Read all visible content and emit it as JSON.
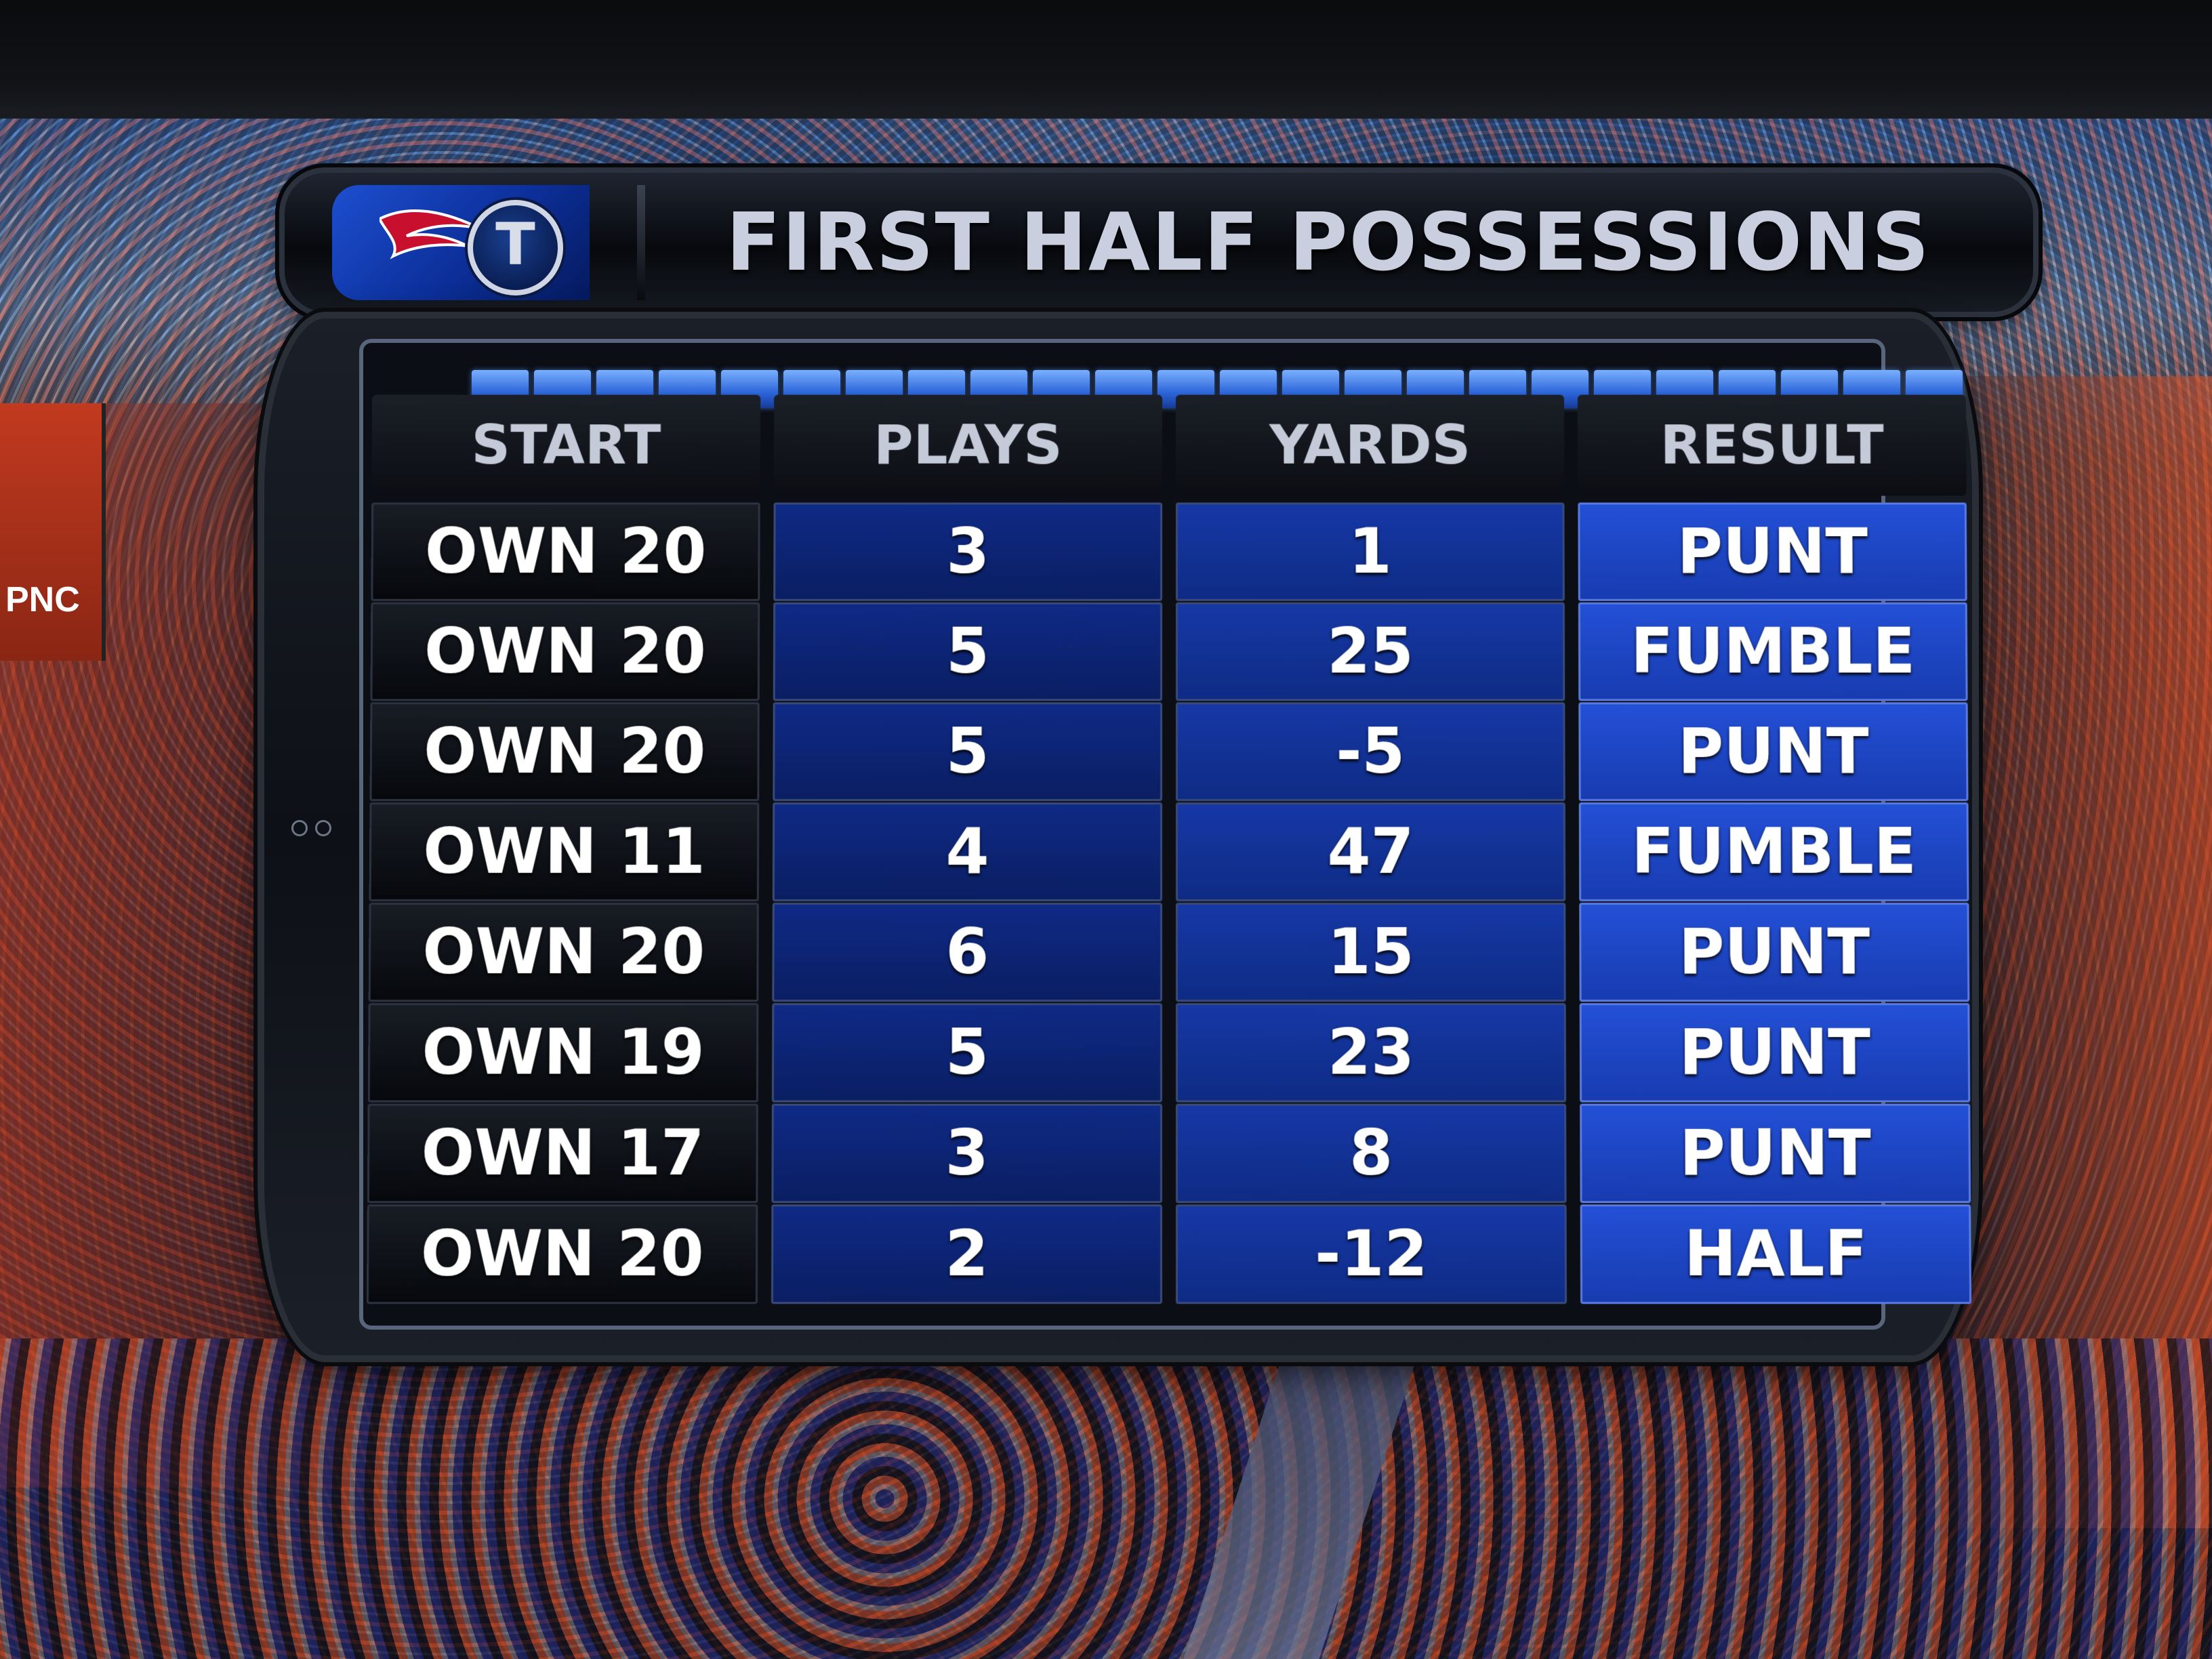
{
  "header": {
    "title": "FIRST HALF POSSESSIONS",
    "logo_letter": "T"
  },
  "ad_board": {
    "text": "PNC"
  },
  "table": {
    "columns": [
      "START",
      "PLAYS",
      "YARDS",
      "RESULT"
    ],
    "rows": [
      {
        "start": "OWN 20",
        "plays": "3",
        "yards": "1",
        "result": "PUNT"
      },
      {
        "start": "OWN 20",
        "plays": "5",
        "yards": "25",
        "result": "FUMBLE"
      },
      {
        "start": "OWN 20",
        "plays": "5",
        "yards": "-5",
        "result": "PUNT"
      },
      {
        "start": "OWN 11",
        "plays": "4",
        "yards": "47",
        "result": "FUMBLE"
      },
      {
        "start": "OWN 20",
        "plays": "6",
        "yards": "15",
        "result": "PUNT"
      },
      {
        "start": "OWN 19",
        "plays": "5",
        "yards": "23",
        "result": "PUNT"
      },
      {
        "start": "OWN 17",
        "plays": "3",
        "yards": "8",
        "result": "PUNT"
      },
      {
        "start": "OWN 20",
        "plays": "2",
        "yards": "-12",
        "result": "HALF"
      }
    ]
  },
  "colors": {
    "result_blue": "#2350d6",
    "yards_blue": "#1638a6",
    "plays_blue": "#0f2a86",
    "title_text": "#c9cfde"
  }
}
